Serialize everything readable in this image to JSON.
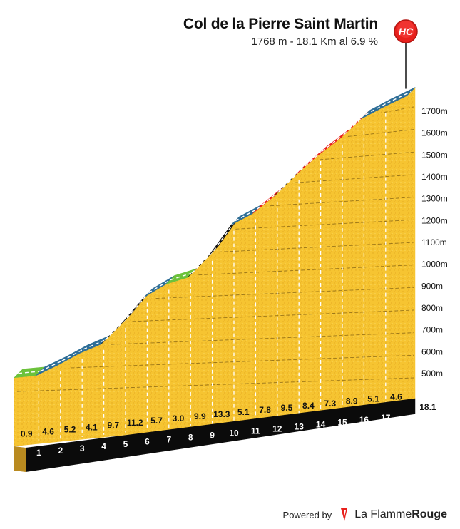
{
  "header": {
    "title": "Col de la Pierre Saint Martin",
    "subtitle": "1768 m - 18.1 Km al 6.9 %"
  },
  "badge": {
    "label": "HC",
    "color": "#e8201c"
  },
  "chart_data": {
    "type": "area",
    "y_tick_labels": [
      "500m",
      "600m",
      "700m",
      "800m",
      "900m",
      "1000m",
      "1100m",
      "1200m",
      "1300m",
      "1400m",
      "1500m",
      "1600m",
      "1700m"
    ],
    "y_ticks": [
      500,
      600,
      700,
      800,
      900,
      1000,
      1100,
      1200,
      1300,
      1400,
      1500,
      1600,
      1700
    ],
    "ylim": [
      300,
      1768
    ],
    "x_ticks": [
      1,
      2,
      3,
      4,
      5,
      6,
      7,
      8,
      9,
      10,
      11,
      12,
      13,
      14,
      15,
      16,
      17
    ],
    "x_end_label": "18.1",
    "total_km": 18.1,
    "start_altitude": 520,
    "segments": [
      {
        "km": 1,
        "gradient": 0.9,
        "label": "0.9",
        "color": "#6cc23b"
      },
      {
        "km": 2,
        "gradient": 4.6,
        "label": "4.6",
        "color": "#2e6e97"
      },
      {
        "km": 3,
        "gradient": 5.2,
        "label": "5.2",
        "color": "#2e6e97"
      },
      {
        "km": 4,
        "gradient": 4.1,
        "label": "4.1",
        "color": "#2e6e97"
      },
      {
        "km": 5,
        "gradient": 9.7,
        "label": "9.7",
        "color": "#111111"
      },
      {
        "km": 6,
        "gradient": 11.2,
        "label": "11.2",
        "color": "#111111"
      },
      {
        "km": 7,
        "gradient": 5.7,
        "label": "5.7",
        "color": "#2e6e97"
      },
      {
        "km": 8,
        "gradient": 3.0,
        "label": "3.0",
        "color": "#6cc23b"
      },
      {
        "km": 9,
        "gradient": 9.9,
        "label": "9.9",
        "color": "#111111"
      },
      {
        "km": 10,
        "gradient": 13.3,
        "label": "13.3",
        "color": "#111111"
      },
      {
        "km": 11,
        "gradient": 5.1,
        "label": "5.1",
        "color": "#2e6e97"
      },
      {
        "km": 12,
        "gradient": 7.8,
        "label": "7.8",
        "color": "#e8201c"
      },
      {
        "km": 13,
        "gradient": 9.5,
        "label": "9.5",
        "color": "#111111"
      },
      {
        "km": 14,
        "gradient": 8.4,
        "label": "8.4",
        "color": "#e8201c"
      },
      {
        "km": 15,
        "gradient": 7.3,
        "label": "7.3",
        "color": "#e8201c"
      },
      {
        "km": 16,
        "gradient": 8.9,
        "label": "8.9",
        "color": "#e8201c"
      },
      {
        "km": 17,
        "gradient": 5.1,
        "label": "5.1",
        "color": "#2e6e97"
      },
      {
        "km": 18.1,
        "gradient": 4.6,
        "label": "4.6",
        "color": "#2e6e97"
      }
    ]
  },
  "footer": {
    "powered_by": "Powered by",
    "brand_light": "La Flamme",
    "brand_bold": "Rouge"
  }
}
